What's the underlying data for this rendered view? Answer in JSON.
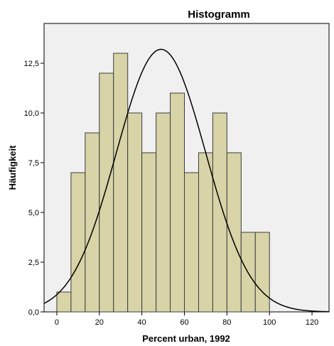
{
  "chart_data": {
    "type": "bar",
    "title": "Histogramm",
    "xlabel": "Percent urban, 1992",
    "ylabel": "Häufigkeit",
    "bin_edges": [
      0,
      6.67,
      13.33,
      20,
      26.67,
      33.33,
      40,
      46.67,
      53.33,
      60,
      66.67,
      73.33,
      80,
      86.67,
      93.33,
      100
    ],
    "values": [
      1,
      7,
      9,
      12,
      13,
      10,
      8,
      10,
      11,
      7,
      8,
      10,
      8,
      4,
      4
    ],
    "xlim": [
      -6,
      128
    ],
    "ylim": [
      0,
      14.5
    ],
    "x_ticks": [
      0,
      20,
      40,
      60,
      80,
      100,
      120
    ],
    "y_ticks": [
      0,
      2.5,
      5,
      7.5,
      10,
      12.5
    ],
    "x_tick_labels": [
      "0",
      "20",
      "40",
      "60",
      "80",
      "100",
      "120"
    ],
    "y_tick_labels": [
      "0,0",
      "2,5",
      "5,0",
      "7,5",
      "10,0",
      "12,5"
    ],
    "normal_curve": {
      "mean": 49,
      "peak": 13.2,
      "sd": 21
    },
    "grid": false,
    "colors": {
      "bar_fill": "#d8d4a8",
      "bar_stroke": "#3c3c3c",
      "plot_bg": "#f0f0f0",
      "curve": "#000000"
    }
  }
}
